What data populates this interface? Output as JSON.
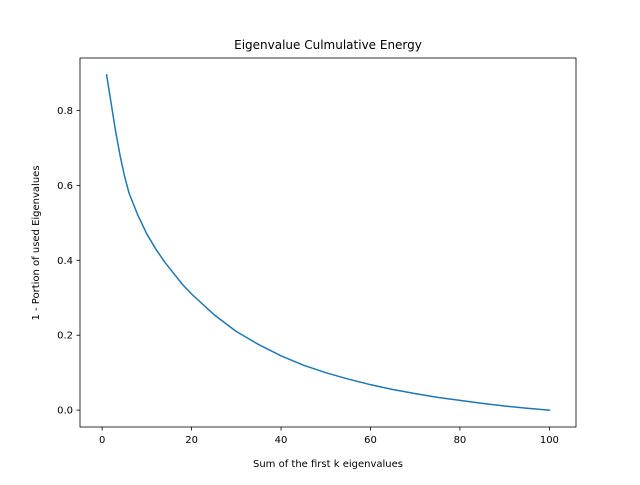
{
  "chart_data": {
    "type": "line",
    "title": "Eigenvalue Culmulative Energy",
    "xlabel": "Sum of the first k eigenvalues",
    "ylabel": "1 - Portion of used Eigenvalues",
    "xlim": [
      -4.95,
      105.95
    ],
    "ylim": [
      -0.045,
      0.94
    ],
    "xticks": [
      0,
      20,
      40,
      60,
      80,
      100
    ],
    "xtick_labels": [
      "0",
      "20",
      "40",
      "60",
      "80",
      "100"
    ],
    "yticks": [
      0.0,
      0.2,
      0.4,
      0.6,
      0.8
    ],
    "ytick_labels": [
      "0.0",
      "0.2",
      "0.4",
      "0.6",
      "0.8"
    ],
    "grid": false,
    "series": [
      {
        "color": "#1f77b4",
        "x": [
          1,
          2,
          3,
          4,
          5,
          6,
          8,
          10,
          12,
          14,
          16,
          18,
          20,
          25,
          30,
          35,
          40,
          45,
          50,
          55,
          60,
          65,
          70,
          75,
          80,
          85,
          90,
          95,
          100
        ],
        "y": [
          0.895,
          0.82,
          0.745,
          0.68,
          0.625,
          0.58,
          0.52,
          0.47,
          0.43,
          0.395,
          0.365,
          0.335,
          0.31,
          0.255,
          0.21,
          0.175,
          0.145,
          0.12,
          0.1,
          0.083,
          0.068,
          0.055,
          0.044,
          0.034,
          0.026,
          0.018,
          0.011,
          0.005,
          0.0
        ]
      }
    ]
  }
}
